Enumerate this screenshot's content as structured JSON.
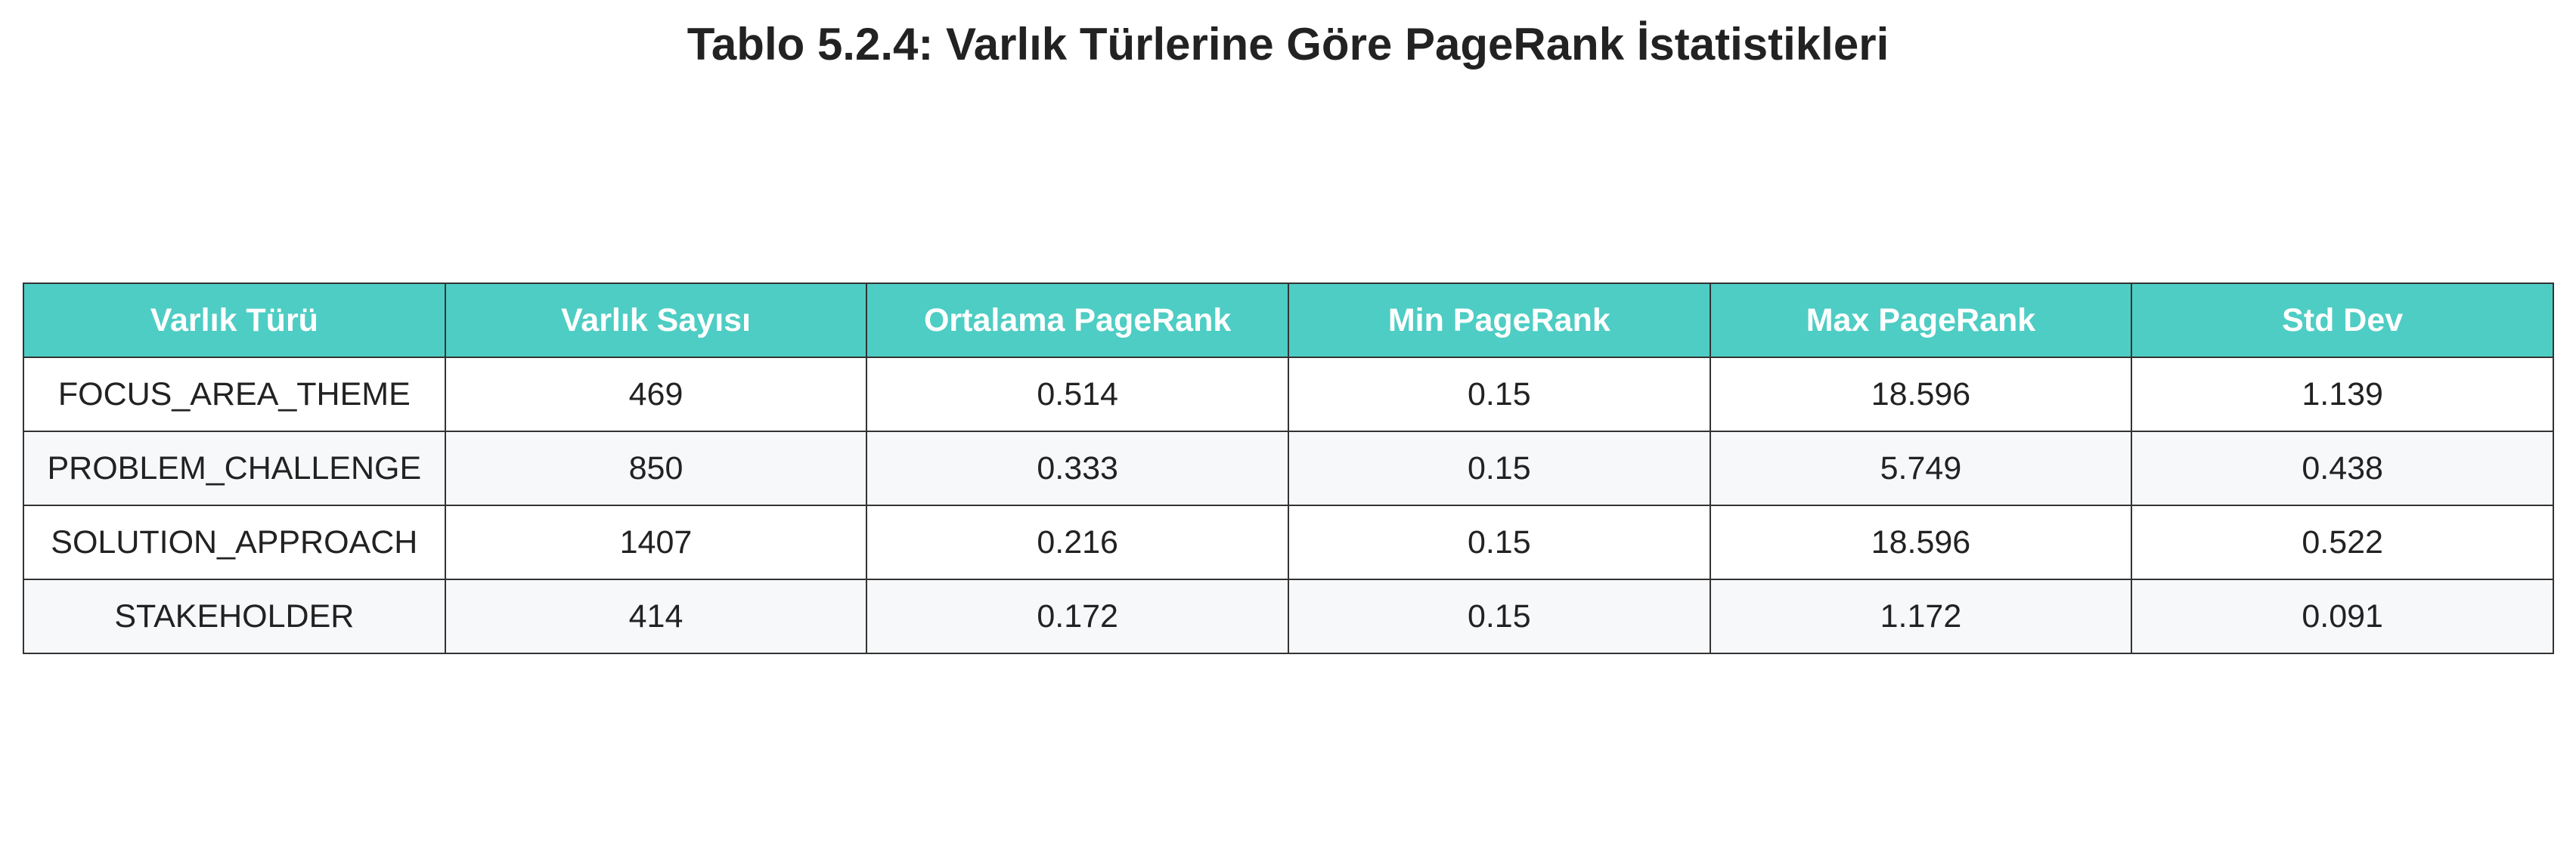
{
  "chart_data": {
    "type": "table",
    "title": "Tablo 5.2.4: Varlık Türlerine Göre PageRank İstatistikleri",
    "columns": [
      "Varlık Türü",
      "Varlık Sayısı",
      "Ortalama PageRank",
      "Min PageRank",
      "Max PageRank",
      "Std Dev"
    ],
    "rows": [
      [
        "FOCUS_AREA_THEME",
        "469",
        "0.514",
        "0.15",
        "18.596",
        "1.139"
      ],
      [
        "PROBLEM_CHALLENGE",
        "850",
        "0.333",
        "0.15",
        "5.749",
        "0.438"
      ],
      [
        "SOLUTION_APPROACH",
        "1407",
        "0.216",
        "0.15",
        "18.596",
        "0.522"
      ],
      [
        "STAKEHOLDER",
        "414",
        "0.172",
        "0.15",
        "1.172",
        "0.091"
      ]
    ],
    "colors": {
      "header_background": "#4ecdc4",
      "header_text": "#ffffff",
      "striped_row_background": "#f7f8fa",
      "border": "#333333"
    }
  }
}
